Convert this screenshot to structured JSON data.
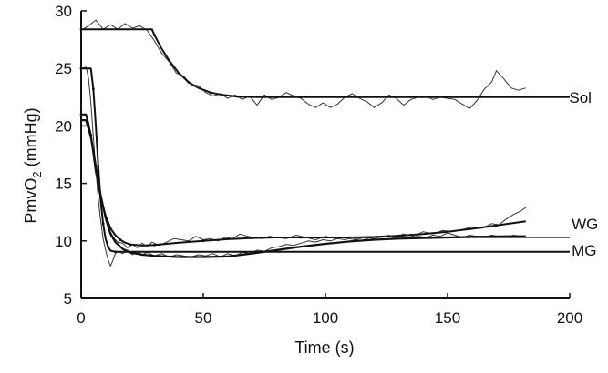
{
  "chart_data": {
    "type": "line",
    "title": "",
    "xlabel": "Time (s)",
    "ylabel": {
      "main": "PmvO",
      "sub": "2",
      "unit": " (mmHg)"
    },
    "xlim": [
      0,
      200
    ],
    "ylim": [
      5,
      30
    ],
    "xticks": [
      0,
      50,
      100,
      150,
      200
    ],
    "yticks": [
      5,
      10,
      15,
      20,
      25,
      30
    ],
    "grid": false,
    "legend": "inline labels at right end of curves",
    "series": [
      {
        "name": "Sol",
        "raw": [
          [
            0,
            28.3
          ],
          [
            3,
            28.7
          ],
          [
            6,
            29.2
          ],
          [
            9,
            28.4
          ],
          [
            12,
            28.8
          ],
          [
            15,
            28.4
          ],
          [
            18,
            28.9
          ],
          [
            21,
            28.5
          ],
          [
            24,
            28.7
          ],
          [
            27,
            28.3
          ],
          [
            30,
            27.4
          ],
          [
            33,
            26.3
          ],
          [
            36,
            25.6
          ],
          [
            39,
            24.6
          ],
          [
            42,
            24.3
          ],
          [
            45,
            23.6
          ],
          [
            48,
            23.5
          ],
          [
            51,
            22.9
          ],
          [
            54,
            22.6
          ],
          [
            57,
            22.8
          ],
          [
            60,
            22.4
          ],
          [
            63,
            22.7
          ],
          [
            66,
            22.3
          ],
          [
            69,
            22.6
          ],
          [
            72,
            21.8
          ],
          [
            75,
            22.7
          ],
          [
            78,
            22.3
          ],
          [
            81,
            22.5
          ],
          [
            84,
            22.9
          ],
          [
            87,
            22.6
          ],
          [
            90,
            22.4
          ],
          [
            93,
            21.9
          ],
          [
            96,
            21.6
          ],
          [
            99,
            22.0
          ],
          [
            102,
            21.6
          ],
          [
            105,
            21.9
          ],
          [
            108,
            22.5
          ],
          [
            111,
            22.8
          ],
          [
            114,
            22.4
          ],
          [
            117,
            22.1
          ],
          [
            120,
            21.6
          ],
          [
            123,
            22.0
          ],
          [
            126,
            22.7
          ],
          [
            129,
            22.4
          ],
          [
            132,
            21.8
          ],
          [
            135,
            22.3
          ],
          [
            138,
            22.5
          ],
          [
            141,
            22.6
          ],
          [
            144,
            22.3
          ],
          [
            147,
            22.5
          ],
          [
            150,
            22.4
          ],
          [
            153,
            22.3
          ],
          [
            156,
            21.9
          ],
          [
            159,
            21.5
          ],
          [
            162,
            22.2
          ],
          [
            165,
            23.2
          ],
          [
            168,
            23.8
          ],
          [
            170,
            24.8
          ],
          [
            173,
            24.1
          ],
          [
            176,
            23.3
          ],
          [
            179,
            23.1
          ],
          [
            182,
            23.3
          ]
        ],
        "fit": [
          [
            0,
            28.4
          ],
          [
            29,
            28.4
          ],
          [
            30,
            27.9
          ],
          [
            33,
            26.7
          ],
          [
            36,
            25.7
          ],
          [
            40,
            24.6
          ],
          [
            44,
            23.8
          ],
          [
            48,
            23.3
          ],
          [
            53,
            22.9
          ],
          [
            58,
            22.7
          ],
          [
            64,
            22.55
          ],
          [
            72,
            22.5
          ],
          [
            80,
            22.5
          ],
          [
            200,
            22.5
          ]
        ],
        "fit_end": 193
      },
      {
        "name": "WG",
        "raw": [
          [
            0,
            20.8
          ],
          [
            2,
            21.0
          ],
          [
            3,
            20.4
          ],
          [
            4,
            19.3
          ],
          [
            5,
            18.0
          ],
          [
            6,
            16.5
          ],
          [
            7,
            15.0
          ],
          [
            8,
            13.8
          ],
          [
            9,
            12.9
          ],
          [
            10,
            12.0
          ],
          [
            11,
            11.2
          ],
          [
            12,
            10.8
          ],
          [
            13,
            10.4
          ],
          [
            14,
            10.1
          ],
          [
            15,
            9.9
          ],
          [
            17,
            9.8
          ],
          [
            19,
            9.4
          ],
          [
            21,
            9.7
          ],
          [
            23,
            9.4
          ],
          [
            25,
            9.8
          ],
          [
            27,
            9.5
          ],
          [
            29,
            9.9
          ],
          [
            32,
            9.6
          ],
          [
            35,
            9.9
          ],
          [
            38,
            10.2
          ],
          [
            41,
            10.1
          ],
          [
            44,
            10.0
          ],
          [
            47,
            10.4
          ],
          [
            50,
            10.1
          ],
          [
            53,
            10.2
          ],
          [
            56,
            10.0
          ],
          [
            59,
            10.3
          ],
          [
            62,
            10.2
          ],
          [
            65,
            10.6
          ],
          [
            68,
            10.4
          ],
          [
            71,
            10.3
          ],
          [
            74,
            10.2
          ],
          [
            77,
            10.4
          ],
          [
            80,
            10.3
          ],
          [
            84,
            10.2
          ],
          [
            88,
            10.5
          ],
          [
            92,
            10.3
          ],
          [
            96,
            10.1
          ],
          [
            100,
            10.4
          ],
          [
            104,
            10.2
          ],
          [
            108,
            10.3
          ],
          [
            112,
            10.1
          ],
          [
            116,
            10.3
          ],
          [
            120,
            10.2
          ],
          [
            124,
            10.4
          ],
          [
            128,
            10.3
          ],
          [
            132,
            10.6
          ],
          [
            136,
            10.4
          ],
          [
            140,
            10.8
          ],
          [
            144,
            10.6
          ],
          [
            148,
            10.9
          ],
          [
            152,
            10.8
          ],
          [
            156,
            11.0
          ],
          [
            160,
            11.2
          ],
          [
            164,
            11.1
          ],
          [
            168,
            11.5
          ],
          [
            171,
            11.4
          ],
          [
            174,
            11.9
          ],
          [
            177,
            12.3
          ],
          [
            180,
            12.6
          ],
          [
            182,
            12.9
          ]
        ],
        "fit": [
          [
            0,
            21.0
          ],
          [
            2,
            21.0
          ],
          [
            4,
            19.2
          ],
          [
            6,
            16.0
          ],
          [
            8,
            13.8
          ],
          [
            10,
            12.2
          ],
          [
            12,
            11.1
          ],
          [
            14,
            10.5
          ],
          [
            16,
            10.1
          ],
          [
            18,
            9.85
          ],
          [
            20,
            9.7
          ],
          [
            25,
            9.6
          ],
          [
            30,
            9.65
          ],
          [
            40,
            9.85
          ],
          [
            50,
            10.0
          ],
          [
            60,
            10.15
          ],
          [
            70,
            10.25
          ],
          [
            80,
            10.3
          ],
          [
            90,
            10.3
          ],
          [
            100,
            10.3
          ],
          [
            110,
            10.3
          ],
          [
            120,
            10.35
          ],
          [
            130,
            10.45
          ],
          [
            140,
            10.6
          ],
          [
            150,
            10.8
          ],
          [
            160,
            11.05
          ],
          [
            170,
            11.35
          ],
          [
            182,
            11.7
          ]
        ],
        "fit_end": 182
      },
      {
        "name": "MG",
        "raw": [
          [
            0,
            25.0
          ],
          [
            2,
            25.1
          ],
          [
            3,
            24.2
          ],
          [
            4,
            22.0
          ],
          [
            5,
            19.0
          ],
          [
            6,
            16.2
          ],
          [
            7,
            13.6
          ],
          [
            8,
            11.8
          ],
          [
            9,
            10.2
          ],
          [
            10,
            9.2
          ],
          [
            11,
            8.4
          ],
          [
            12,
            7.8
          ],
          [
            13,
            8.3
          ],
          [
            14,
            8.9
          ],
          [
            15,
            9.1
          ],
          [
            17,
            8.9
          ],
          [
            19,
            9.2
          ],
          [
            21,
            8.8
          ],
          [
            23,
            9.1
          ],
          [
            25,
            8.8
          ],
          [
            27,
            9.0
          ],
          [
            30,
            8.7
          ],
          [
            33,
            8.9
          ],
          [
            36,
            8.6
          ],
          [
            39,
            8.8
          ],
          [
            42,
            8.7
          ],
          [
            45,
            8.6
          ],
          [
            48,
            8.8
          ],
          [
            51,
            8.7
          ],
          [
            54,
            8.9
          ],
          [
            57,
            8.6
          ],
          [
            60,
            8.9
          ],
          [
            63,
            8.7
          ],
          [
            66,
            9.0
          ],
          [
            69,
            8.9
          ],
          [
            72,
            9.2
          ],
          [
            75,
            9.1
          ],
          [
            78,
            9.4
          ],
          [
            81,
            9.5
          ],
          [
            84,
            9.7
          ],
          [
            87,
            9.6
          ],
          [
            90,
            9.8
          ],
          [
            93,
            10.0
          ],
          [
            96,
            9.9
          ],
          [
            99,
            10.1
          ],
          [
            102,
            10.0
          ],
          [
            105,
            10.2
          ],
          [
            108,
            10.1
          ],
          [
            111,
            10.3
          ],
          [
            114,
            10.0
          ],
          [
            117,
            10.2
          ],
          [
            120,
            10.4
          ],
          [
            123,
            10.3
          ],
          [
            126,
            10.5
          ],
          [
            129,
            10.3
          ],
          [
            132,
            10.4
          ],
          [
            135,
            10.6
          ],
          [
            138,
            10.4
          ],
          [
            141,
            10.3
          ],
          [
            144,
            10.5
          ],
          [
            147,
            10.4
          ],
          [
            150,
            10.7
          ],
          [
            153,
            10.5
          ],
          [
            156,
            10.3
          ],
          [
            159,
            10.5
          ],
          [
            162,
            10.4
          ],
          [
            165,
            10.3
          ],
          [
            168,
            10.5
          ],
          [
            171,
            10.4
          ],
          [
            174,
            10.3
          ],
          [
            177,
            10.5
          ],
          [
            180,
            10.4
          ]
        ],
        "fit": [
          [
            0,
            25.0
          ],
          [
            4,
            25.0
          ],
          [
            5,
            23.2
          ],
          [
            6,
            20.0
          ],
          [
            7,
            16.5
          ],
          [
            8,
            13.5
          ],
          [
            9,
            11.5
          ],
          [
            10,
            10.2
          ],
          [
            11,
            9.5
          ],
          [
            12,
            9.15
          ],
          [
            14,
            9.05
          ],
          [
            200,
            9.05
          ]
        ],
        "fit_end": 200,
        "fit2": [
          [
            0,
            20.5
          ],
          [
            2,
            20.5
          ],
          [
            4,
            19.0
          ],
          [
            6,
            16.5
          ],
          [
            8,
            14.0
          ],
          [
            10,
            12.0
          ],
          [
            12,
            10.6
          ],
          [
            14,
            9.9
          ],
          [
            17,
            9.3
          ],
          [
            20,
            9.0
          ],
          [
            25,
            8.8
          ],
          [
            30,
            8.7
          ],
          [
            40,
            8.6
          ],
          [
            50,
            8.6
          ],
          [
            60,
            8.65
          ],
          [
            70,
            8.9
          ],
          [
            80,
            9.2
          ],
          [
            90,
            9.5
          ],
          [
            100,
            9.75
          ],
          [
            110,
            9.95
          ],
          [
            120,
            10.1
          ],
          [
            130,
            10.2
          ],
          [
            140,
            10.25
          ],
          [
            150,
            10.3
          ],
          [
            160,
            10.35
          ],
          [
            175,
            10.4
          ],
          [
            182,
            10.4
          ]
        ],
        "level_line": [
          [
            150,
            10.3
          ],
          [
            200,
            10.3
          ]
        ]
      }
    ]
  }
}
